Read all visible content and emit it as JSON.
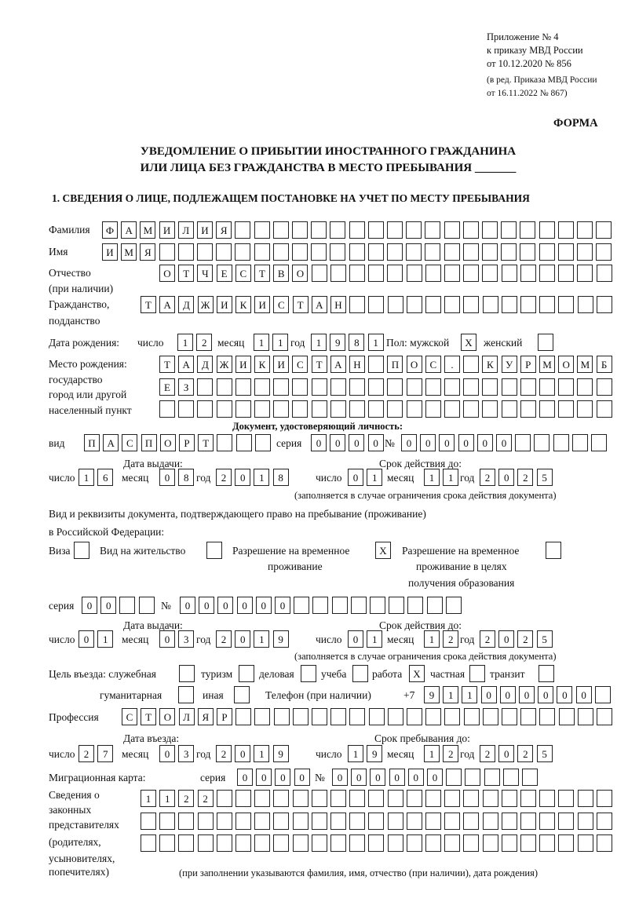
{
  "header": {
    "line1": "Приложение № 4",
    "line2": "к приказу МВД России",
    "line3": "от 10.12.2020 № 856",
    "line4": "(в ред. Приказа МВД России",
    "line5": "от 16.11.2022 № 867)"
  },
  "form_label": "ФОРМА",
  "title": {
    "line1": "УВЕДОМЛЕНИЕ О ПРИБЫТИИ ИНОСТРАННОГО ГРАЖДАНИНА",
    "line2": "ИЛИ ЛИЦА БЕЗ ГРАЖДАНСТВА В МЕСТО ПРЕБЫВАНИЯ _______"
  },
  "section1": "1. СВЕДЕНИЯ О ЛИЦЕ, ПОДЛЕЖАЩЕМ ПОСТАНОВКЕ НА УЧЕТ ПО МЕСТУ ПРЕБЫВАНИЯ",
  "labels": {
    "surname": "Фамилия",
    "name": "Имя",
    "patronymic1": "Отчество",
    "patronymic2": "(при наличии)",
    "citizenship1": "Гражданство,",
    "citizenship2": "подданство",
    "birth_date": "Дата рождения:",
    "day": "число",
    "month": "месяц",
    "year": "год",
    "sex": "Пол: мужской",
    "female": "женский",
    "birthplace1": "Место рождения:",
    "birthplace2": "государство",
    "birthplace3": "город или другой",
    "birthplace4": "населенный пункт",
    "id_doc": "Документ, удостоверяющий личность:",
    "kind": "вид",
    "series": "серия",
    "number": "№",
    "issue_date": "Дата выдачи:",
    "valid_until": "Срок действия до:",
    "valid_note": "(заполняется в случае ограничения срока действия документа)",
    "right_doc1": "Вид и реквизиты документа, подтверждающего право на пребывание (проживание)",
    "right_doc2": "в Российской Федерации:",
    "visa": "Виза",
    "residence": "Вид на жительство",
    "trp1": "Разрешение на временное",
    "trp2": "проживание",
    "trp_edu1": "Разрешение на временное",
    "trp_edu2": "проживание в целях",
    "trp_edu3": "получения образования",
    "purpose": "Цель въезда: служебная",
    "tourism": "туризм",
    "business": "деловая",
    "study": "учеба",
    "work": "работа",
    "private": "частная",
    "transit": "транзит",
    "humanitarian": "гуманитарная",
    "other": "иная",
    "phone": "Телефон (при наличии)",
    "phone_prefix": "+7",
    "profession": "Профессия",
    "entry_date": "Дата въезда:",
    "stay_until": "Срок пребывания до:",
    "migration_card": "Миграционная карта:",
    "legal1": "Сведения о",
    "legal2": "законных",
    "legal3": "представителях",
    "legal4": "(родителях,",
    "legal5": "усыновителях,",
    "legal6": "попечителях)",
    "legal_note": "(при заполнении указываются фамилия, имя, отчество (при наличии), дата рождения)"
  },
  "values": {
    "surname": "ФАМИЛИЯ",
    "name": "ИМЯ",
    "patronymic": "ОТЧЕСТВО",
    "citizenship": "ТАДЖИКИСТАН",
    "birth_day": "12",
    "birth_month": "11",
    "birth_year": "1981",
    "male": "X",
    "female": "",
    "birthplace1": "ТАДЖИКИСТАН ПОС. КУРМОМБ",
    "birthplace2": "ЕЗ",
    "birthplace3": "",
    "doc_kind": "ПАСПОРТ",
    "doc_series": "0000",
    "doc_number": "000000",
    "doc_issue_day": "16",
    "doc_issue_month": "08",
    "doc_issue_year": "2018",
    "doc_valid_day": "01",
    "doc_valid_month": "11",
    "doc_valid_year": "2025",
    "visa": "",
    "residence": "",
    "trp": "X",
    "trp_edu": "",
    "right_series": "00",
    "right_number": "000000",
    "right_issue_day": "01",
    "right_issue_month": "03",
    "right_issue_year": "2019",
    "right_valid_day": "01",
    "right_valid_month": "12",
    "right_valid_year": "2025",
    "purpose_official": "",
    "purpose_tourism": "",
    "purpose_business": "",
    "purpose_study": "",
    "purpose_work": "X",
    "purpose_private": "",
    "purpose_transit": "",
    "purpose_humanitarian": "",
    "purpose_other": "",
    "phone": "911000000",
    "profession": "СТОЛЯР",
    "entry_day": "27",
    "entry_month": "03",
    "entry_year": "2019",
    "stay_day": "19",
    "stay_month": "12",
    "stay_year": "2025",
    "mc_series": "0000",
    "mc_number": "000000",
    "legal1": "1122",
    "legal2": "",
    "legal3": ""
  }
}
